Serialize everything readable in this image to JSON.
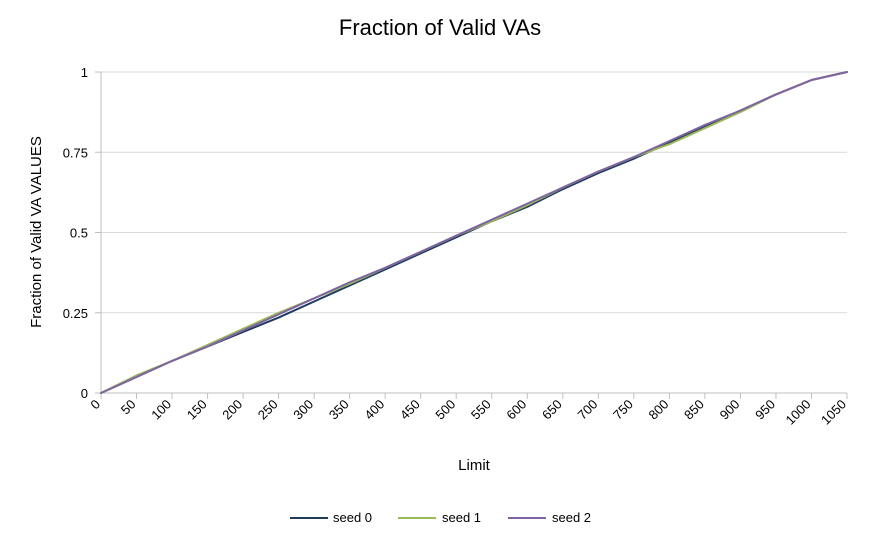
{
  "chart_data": {
    "type": "line",
    "title": "Fraction of Valid VAs",
    "xlabel": "Limit",
    "ylabel": "Fraction of Valid VA VALUES",
    "x": [
      0,
      50,
      100,
      150,
      200,
      250,
      300,
      350,
      400,
      450,
      500,
      550,
      600,
      650,
      700,
      750,
      800,
      850,
      900,
      950,
      1000,
      1050
    ],
    "series": [
      {
        "name": "seed 0",
        "color": "#1f3b5e",
        "values": [
          0,
          0.05,
          0.1,
          0.145,
          0.19,
          0.235,
          0.285,
          0.335,
          0.385,
          0.435,
          0.485,
          0.535,
          0.58,
          0.635,
          0.685,
          0.73,
          0.78,
          0.83,
          0.88,
          0.93,
          0.975,
          1
        ]
      },
      {
        "name": "seed 1",
        "color": "#9bbb59",
        "values": [
          0,
          0.055,
          0.1,
          0.15,
          0.2,
          0.25,
          0.295,
          0.34,
          0.39,
          0.44,
          0.49,
          0.535,
          0.585,
          0.64,
          0.69,
          0.735,
          0.775,
          0.825,
          0.875,
          0.93,
          0.975,
          1
        ]
      },
      {
        "name": "seed 2",
        "color": "#8064a2",
        "values": [
          0,
          0.05,
          0.1,
          0.145,
          0.195,
          0.245,
          0.295,
          0.345,
          0.39,
          0.44,
          0.49,
          0.54,
          0.59,
          0.64,
          0.69,
          0.735,
          0.785,
          0.835,
          0.88,
          0.93,
          0.975,
          1
        ]
      }
    ],
    "xticks": [
      "0",
      "50",
      "100",
      "150",
      "200",
      "250",
      "300",
      "350",
      "400",
      "450",
      "500",
      "550",
      "600",
      "650",
      "700",
      "750",
      "800",
      "850",
      "900",
      "950",
      "1000",
      "1050"
    ],
    "yticks": [
      "0",
      "0.25",
      "0.5",
      "0.75",
      "1"
    ],
    "ytick_values": [
      0,
      0.25,
      0.5,
      0.75,
      1
    ],
    "xlim": [
      0,
      1050
    ],
    "ylim": [
      0,
      1
    ],
    "grid": "horizontal",
    "legend_position": "bottom"
  }
}
